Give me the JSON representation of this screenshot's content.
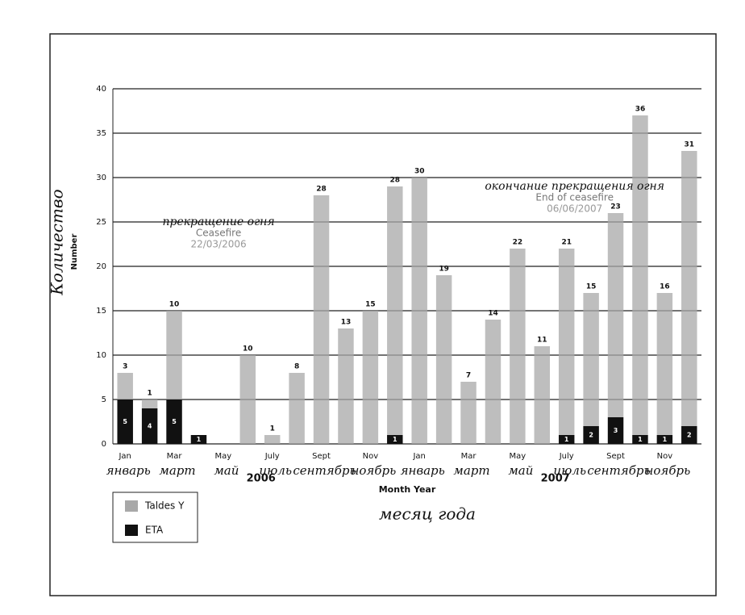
{
  "chart_data": {
    "type": "stacked_bar",
    "y_label": "Number",
    "y_label_handwritten": "Количество",
    "x_label": "Month Year",
    "x_label_handwritten": "месяц года",
    "categories": [
      "Jan",
      null,
      "Mar",
      null,
      "May",
      null,
      "July",
      null,
      "Sept",
      null,
      "Nov",
      null,
      "Jan",
      null,
      "Mar",
      null,
      "May",
      null,
      "July",
      null,
      "Sept",
      null,
      "Nov",
      null
    ],
    "categories_handwritten": [
      "январь",
      null,
      "март",
      null,
      "май",
      null,
      "июль",
      null,
      "сентябрь",
      null,
      "ноябрь",
      null,
      "январь",
      null,
      "март",
      null,
      "май",
      null,
      "июль",
      null,
      "сентябрь",
      null,
      "ноябрь",
      null
    ],
    "years": [
      {
        "index": 6,
        "label": "2006"
      },
      {
        "index": 18,
        "label": "2007"
      }
    ],
    "series": [
      {
        "name": "ETA",
        "color": "#111111",
        "values": [
          5,
          4,
          5,
          1,
          null,
          null,
          null,
          null,
          null,
          null,
          null,
          1,
          null,
          null,
          null,
          null,
          null,
          null,
          1,
          2,
          3,
          1,
          1,
          2
        ]
      },
      {
        "name": "Taldes Y",
        "color": "#a8a8a8",
        "values": [
          3,
          1,
          10,
          null,
          null,
          10,
          1,
          8,
          28,
          13,
          15,
          28,
          30,
          19,
          7,
          14,
          22,
          11,
          21,
          15,
          23,
          36,
          16,
          31
        ]
      }
    ],
    "annotations": [
      {
        "index": 2,
        "y": 25,
        "handwritten": "прекращение огня",
        "text": "Ceasefire",
        "date": "22/03/2006"
      },
      {
        "index": 18,
        "y": 29,
        "handwritten": "окончание прекращения огня",
        "text": "End of ceasefire",
        "date": "06/06/2007"
      }
    ],
    "ylim": [
      0,
      40
    ],
    "yticks": [
      0,
      5,
      10,
      15,
      20,
      25,
      30,
      35,
      40
    ],
    "grid": true,
    "legend": "bottom-left"
  }
}
